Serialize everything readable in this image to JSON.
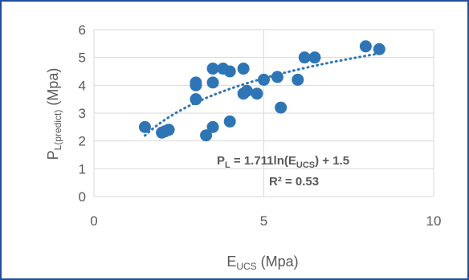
{
  "chart_data": {
    "type": "scatter",
    "xlim": [
      0,
      10
    ],
    "ylim": [
      0,
      6
    ],
    "xticks": [
      "0",
      "5",
      "10"
    ],
    "yticks": [
      "0",
      "1",
      "2",
      "3",
      "4",
      "5",
      "6"
    ],
    "xlabel": {
      "main": "E",
      "sub": "UCS",
      "rest": " (Mpa)"
    },
    "ylabel": {
      "main": "P",
      "sub": "L(predict)",
      "rest": " (Mpa)"
    },
    "grid": true,
    "legend": "none",
    "colors": {
      "points": "#2e75b6",
      "trend": "#2e75b6",
      "grid": "#d9d9d9",
      "text": "#595959",
      "border": "#1f4e9a"
    },
    "points": [
      {
        "x": 1.5,
        "y": 2.5
      },
      {
        "x": 2.0,
        "y": 2.3
      },
      {
        "x": 2.1,
        "y": 2.35
      },
      {
        "x": 2.2,
        "y": 2.4
      },
      {
        "x": 3.0,
        "y": 4.0
      },
      {
        "x": 3.0,
        "y": 4.1
      },
      {
        "x": 3.0,
        "y": 3.5
      },
      {
        "x": 3.3,
        "y": 2.2
      },
      {
        "x": 3.5,
        "y": 4.6
      },
      {
        "x": 3.5,
        "y": 4.1
      },
      {
        "x": 3.5,
        "y": 2.5
      },
      {
        "x": 3.8,
        "y": 4.6
      },
      {
        "x": 4.0,
        "y": 4.5
      },
      {
        "x": 4.0,
        "y": 2.7
      },
      {
        "x": 4.4,
        "y": 4.6
      },
      {
        "x": 4.4,
        "y": 3.7
      },
      {
        "x": 4.5,
        "y": 3.8
      },
      {
        "x": 4.8,
        "y": 3.7
      },
      {
        "x": 5.0,
        "y": 4.2
      },
      {
        "x": 5.4,
        "y": 4.3
      },
      {
        "x": 5.5,
        "y": 3.2
      },
      {
        "x": 6.0,
        "y": 4.2
      },
      {
        "x": 6.2,
        "y": 5.0
      },
      {
        "x": 6.5,
        "y": 5.0
      },
      {
        "x": 8.0,
        "y": 5.4
      },
      {
        "x": 8.4,
        "y": 5.3
      }
    ],
    "trendline": {
      "type": "logarithmic",
      "a": 1.711,
      "b": 1.5,
      "x_range": [
        1.5,
        8.5
      ]
    },
    "annotations": {
      "equation": {
        "lhs_main": "P",
        "lhs_sub": "L",
        "mid": " = 1.711ln(E",
        "mid_sub": "UCS",
        "rest": ") + 1.5"
      },
      "r2": "R² = 0.53"
    }
  }
}
